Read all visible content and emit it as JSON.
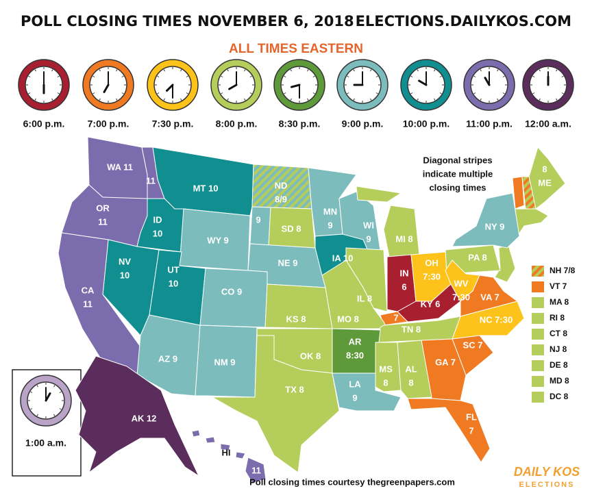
{
  "header": {
    "title": "POLL CLOSING TIMES NOVEMBER 6, 2018",
    "site": "ELECTIONS.DAILYKOS.COM",
    "subtitle": "ALL TIMES EASTERN"
  },
  "clocks": [
    {
      "label": "6:00 p.m.",
      "color": "#a8202f"
    },
    {
      "label": "7:00 p.m.",
      "color": "#f07a22"
    },
    {
      "label": "7:30 p.m.",
      "color": "#fdc31a"
    },
    {
      "label": "8:00 p.m.",
      "color": "#b5cd5a"
    },
    {
      "label": "8:30 p.m.",
      "color": "#5f9a3a"
    },
    {
      "label": "9:00 p.m.",
      "color": "#7dbcbc"
    },
    {
      "label": "10:00 p.m.",
      "color": "#118f90"
    },
    {
      "label": "11:00 p.m.",
      "color": "#7b6cad"
    },
    {
      "label": "12:00 a.m.",
      "color": "#5a2d5c"
    }
  ],
  "inset_clock": {
    "label": "1:00 a.m.",
    "color": "#b9a4c8"
  },
  "states": [
    {
      "lines": [
        "WA 11"
      ],
      "color": "#7b6cad"
    },
    {
      "lines": [
        "11"
      ],
      "color": "#7b6cad"
    },
    {
      "lines": [
        "MT 10"
      ],
      "color": "#118f90"
    },
    {
      "lines": [
        "ND",
        "8/9"
      ],
      "color": [
        "#b5cd5a",
        "#7dbcbc"
      ]
    },
    {
      "lines": [
        "OR",
        "11"
      ],
      "color": "#7b6cad"
    },
    {
      "lines": [
        "ID",
        "10"
      ],
      "color": "#118f90"
    },
    {
      "lines": [
        "9"
      ],
      "color": "#7dbcbc"
    },
    {
      "lines": [
        "SD 8"
      ],
      "color": "#b5cd5a"
    },
    {
      "lines": [
        "MN",
        "9"
      ],
      "color": "#7dbcbc"
    },
    {
      "lines": [
        "WI",
        "9"
      ],
      "color": "#7dbcbc"
    },
    {
      "lines": [
        "MI 8"
      ],
      "color": "#b5cd5a"
    },
    {
      "lines": [
        "NY 9"
      ],
      "color": "#7dbcbc"
    },
    {
      "lines": [
        "WY 9"
      ],
      "color": "#7dbcbc"
    },
    {
      "lines": [
        "NE 9"
      ],
      "color": "#7dbcbc"
    },
    {
      "lines": [
        "IA 10"
      ],
      "color": "#118f90"
    },
    {
      "lines": [
        "NV",
        "10"
      ],
      "color": "#118f90"
    },
    {
      "lines": [
        "UT",
        "10"
      ],
      "color": "#118f90"
    },
    {
      "lines": [
        "CO 9"
      ],
      "color": "#7dbcbc"
    },
    {
      "lines": [
        "CA",
        "11"
      ],
      "color": "#7b6cad"
    },
    {
      "lines": [
        "IL 8"
      ],
      "color": "#b5cd5a"
    },
    {
      "lines": [
        "IN",
        "6"
      ],
      "color": "#a8202f"
    },
    {
      "lines": [
        "OH",
        "7:30"
      ],
      "color": "#fdc31a"
    },
    {
      "lines": [
        "PA 8"
      ],
      "color": "#b5cd5a"
    },
    {
      "lines": [
        "WV",
        "7:30"
      ],
      "color": "#fdc31a"
    },
    {
      "lines": [
        "VA 7"
      ],
      "color": "#f07a22"
    },
    {
      "lines": [
        "KY 6"
      ],
      "color": "#a8202f"
    },
    {
      "lines": [
        "7"
      ],
      "color": "#f07a22"
    },
    {
      "lines": [
        "KS 8"
      ],
      "color": "#b5cd5a"
    },
    {
      "lines": [
        "MO 8"
      ],
      "color": "#b5cd5a"
    },
    {
      "lines": [
        "NC 7:30"
      ],
      "color": "#fdc31a"
    },
    {
      "lines": [
        "TN 8"
      ],
      "color": "#b5cd5a"
    },
    {
      "lines": [
        "AZ 9"
      ],
      "color": "#7dbcbc"
    },
    {
      "lines": [
        "NM 9"
      ],
      "color": "#7dbcbc"
    },
    {
      "lines": [
        "OK 8"
      ],
      "color": "#b5cd5a"
    },
    {
      "lines": [
        "AR",
        "8:30"
      ],
      "color": "#5f9a3a"
    },
    {
      "lines": [
        "SC 7"
      ],
      "color": "#f07a22"
    },
    {
      "lines": [
        "GA 7"
      ],
      "color": "#f07a22"
    },
    {
      "lines": [
        "MS",
        "8"
      ],
      "color": "#b5cd5a"
    },
    {
      "lines": [
        "AL",
        "8"
      ],
      "color": "#b5cd5a"
    },
    {
      "lines": [
        "TX 8"
      ],
      "color": "#b5cd5a"
    },
    {
      "lines": [
        "LA",
        "9"
      ],
      "color": "#7dbcbc"
    },
    {
      "lines": [
        "FL",
        "7"
      ],
      "color": "#f07a22"
    },
    {
      "lines": [
        "AK 12"
      ],
      "color": "#5a2d5c"
    },
    {
      "lines": [
        "11"
      ],
      "color": "#7b6cad"
    },
    {
      "lines": [
        "8",
        "ME"
      ],
      "color": "#b5cd5a"
    }
  ],
  "hawaii_name": "HI",
  "note": {
    "lines": [
      "Diagonal stripes",
      "indicate multiple",
      "closing times"
    ]
  },
  "legend": [
    {
      "label": "NH 7/8",
      "color": [
        "#f07a22",
        "#b5cd5a"
      ]
    },
    {
      "label": "VT 7",
      "color": "#f07a22"
    },
    {
      "label": "MA 8",
      "color": "#b5cd5a"
    },
    {
      "label": "RI 8",
      "color": "#b5cd5a"
    },
    {
      "label": "CT 8",
      "color": "#b5cd5a"
    },
    {
      "label": "NJ 8",
      "color": "#b5cd5a"
    },
    {
      "label": "DE 8",
      "color": "#b5cd5a"
    },
    {
      "label": "MD 8",
      "color": "#b5cd5a"
    },
    {
      "label": "DC 8",
      "color": "#b5cd5a"
    }
  ],
  "footer": "Poll closing times courtesy thegreenpapers.com",
  "logo": {
    "name": "DAILY KOS",
    "sub": "ELECTIONS"
  }
}
